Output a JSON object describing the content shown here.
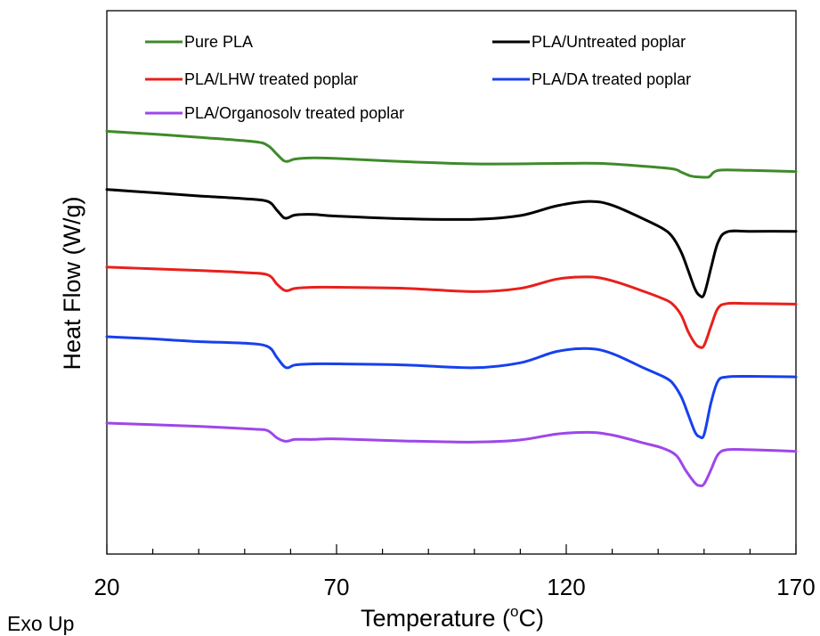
{
  "chart_data": {
    "type": "line",
    "xlabel": "Temperature (",
    "xlabel_sup": "o",
    "xlabel_tail": "C)",
    "ylabel": "Heat Flow (W/g)",
    "note": "Exo Up",
    "xlim": [
      20,
      170
    ],
    "ylim": [
      0,
      100
    ],
    "x_ticks": [
      20,
      70,
      120,
      170
    ],
    "y_ticks_shown": false,
    "grid": false,
    "legend_position": "top",
    "series": [
      {
        "name": "Pure PLA",
        "color": "#3f8a2a",
        "x": [
          20,
          30,
          40,
          52,
          55,
          57,
          58.5,
          59.5,
          61,
          65,
          70,
          80,
          100,
          120,
          127,
          135,
          143,
          145,
          147,
          149,
          151,
          152,
          153,
          155,
          160,
          170
        ],
        "y": [
          77.8,
          77.3,
          76.7,
          75.9,
          75.2,
          73.6,
          72.4,
          72.3,
          72.7,
          72.9,
          72.8,
          72.4,
          71.8,
          71.9,
          71.9,
          71.5,
          70.9,
          70.3,
          69.6,
          69.4,
          69.4,
          70.2,
          70.6,
          70.7,
          70.6,
          70.4
        ]
      },
      {
        "name": "PLA/Untreated poplar",
        "color": "#000000",
        "x": [
          20,
          30,
          40,
          50,
          55,
          57,
          58.5,
          59.5,
          61,
          65,
          70,
          85,
          100,
          110,
          118,
          125,
          130,
          137,
          141,
          143,
          145,
          146.5,
          148,
          149,
          150,
          151.5,
          153,
          155,
          160,
          170
        ],
        "y": [
          67.1,
          66.5,
          65.9,
          65.4,
          64.9,
          63.3,
          61.9,
          61.9,
          62.4,
          62.5,
          62.2,
          61.7,
          61.6,
          62.3,
          64.1,
          64.9,
          64.2,
          61.6,
          59.9,
          58.5,
          55.6,
          52.3,
          48.8,
          47.6,
          47.8,
          52.6,
          57.3,
          59.3,
          59.4,
          59.4
        ]
      },
      {
        "name": "PLA/LHW treated poplar",
        "color": "#e8201c",
        "x": [
          20,
          30,
          40,
          50,
          55,
          57,
          58.5,
          59.5,
          61,
          65,
          70,
          85,
          100,
          110,
          118,
          125,
          130,
          137,
          141,
          143,
          145,
          146.5,
          148,
          149,
          150,
          151.5,
          153,
          155,
          160,
          170
        ],
        "y": [
          52.8,
          52.5,
          52.2,
          51.8,
          51.4,
          49.7,
          48.6,
          48.5,
          48.9,
          49.1,
          49.1,
          48.9,
          48.3,
          48.9,
          50.6,
          51.0,
          50.3,
          48.3,
          47.0,
          46.1,
          44.0,
          41.0,
          38.8,
          38.1,
          38.4,
          41.9,
          45.2,
          46.1,
          46.1,
          46.0
        ]
      },
      {
        "name": "PLA/DA treated poplar",
        "color": "#1740ee",
        "x": [
          20,
          30,
          40,
          50,
          55,
          57,
          58.5,
          59.5,
          61,
          65,
          70,
          85,
          100,
          110,
          118,
          125,
          130,
          137,
          141,
          143,
          145,
          146.5,
          148,
          149,
          150,
          151.5,
          153,
          155,
          160,
          170
        ],
        "y": [
          40.0,
          39.6,
          39.1,
          38.8,
          38.2,
          36.2,
          34.6,
          34.3,
          34.8,
          35.0,
          35.0,
          34.8,
          34.3,
          35.2,
          37.3,
          37.8,
          36.9,
          34.2,
          32.7,
          31.6,
          29.0,
          25.8,
          22.5,
          21.6,
          22.0,
          27.8,
          31.8,
          32.6,
          32.7,
          32.6
        ]
      },
      {
        "name": "PLA/Organosolv treated poplar",
        "color": "#9e46ea",
        "x": [
          20,
          30,
          40,
          52,
          55,
          57,
          58.5,
          59.5,
          61,
          65,
          70,
          85,
          100,
          110,
          118,
          125,
          130,
          137,
          141,
          144,
          146,
          148,
          149,
          150,
          151.5,
          153,
          155,
          160,
          170
        ],
        "y": [
          24.1,
          23.8,
          23.5,
          23.0,
          22.7,
          21.4,
          20.8,
          20.8,
          21.1,
          21.1,
          21.2,
          20.8,
          20.6,
          21.0,
          22.1,
          22.4,
          21.9,
          20.4,
          19.5,
          18.1,
          15.4,
          13.1,
          12.6,
          12.9,
          15.5,
          18.3,
          19.2,
          19.2,
          18.9
        ]
      }
    ]
  }
}
